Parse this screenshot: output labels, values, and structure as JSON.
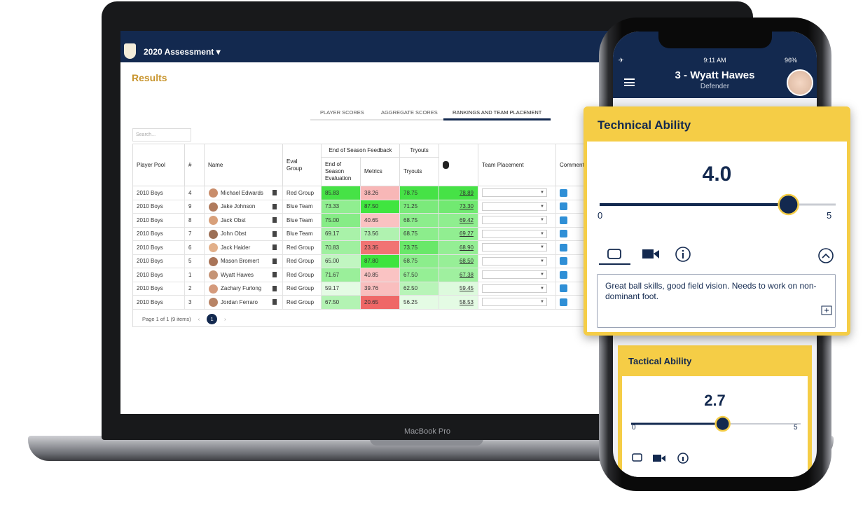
{
  "laptop": {
    "header_title": "2020 Assessment",
    "page_title": "Results",
    "tabs": [
      "PLAYER SCORES",
      "AGGREGATE SCORES",
      "RANKINGS AND TEAM PLACEMENT"
    ],
    "search_placeholder": "Search...",
    "group_headers": [
      "End of Season Feedback",
      "Tryouts"
    ],
    "columns": [
      "Player Pool",
      "#",
      "Name",
      "Eval Group",
      "End of Season Evaluation",
      "Metrics",
      "Tryouts",
      "Team Placement",
      "Comment"
    ],
    "rows": [
      [
        "2010 Boys",
        "4",
        "Michael Edwards",
        "Red Group",
        "85.83",
        "38.26",
        "78.75",
        "78.89"
      ],
      [
        "2010 Boys",
        "9",
        "Jake Johnson",
        "Blue Team",
        "73.33",
        "87.50",
        "71.25",
        "73.30"
      ],
      [
        "2010 Boys",
        "8",
        "Jack Obst",
        "Blue Team",
        "75.00",
        "40.65",
        "68.75",
        "69.42"
      ],
      [
        "2010 Boys",
        "7",
        "John Obst",
        "Blue Team",
        "69.17",
        "73.56",
        "68.75",
        "69.27"
      ],
      [
        "2010 Boys",
        "6",
        "Jack Haider",
        "Red Group",
        "70.83",
        "23.35",
        "73.75",
        "68.90"
      ],
      [
        "2010 Boys",
        "5",
        "Mason Bromert",
        "Red Group",
        "65.00",
        "87.80",
        "68.75",
        "68.50"
      ],
      [
        "2010 Boys",
        "1",
        "Wyatt Hawes",
        "Red Group",
        "71.67",
        "40.85",
        "67.50",
        "67.38"
      ],
      [
        "2010 Boys",
        "2",
        "Zachary Furlong",
        "Red Group",
        "59.17",
        "39.76",
        "62.50",
        "59.45"
      ],
      [
        "2010 Boys",
        "3",
        "Jordan Ferraro",
        "Red Group",
        "67.50",
        "20.65",
        "56.25",
        "58.53"
      ]
    ],
    "pager": "Page 1 of 1 (9 items)",
    "current_page": "1",
    "device_label": "MacBook Pro"
  },
  "phone": {
    "time": "9:11 AM",
    "battery": "96%",
    "player": "3 - Wyatt Hawes",
    "position": "Defender",
    "cards": [
      {
        "title": "Technical Ability",
        "value": 4,
        "value_label": "4.0",
        "min": 0,
        "max": 5,
        "comment": "Great ball skills, good field vision. Needs to work on non-dominant foot."
      },
      {
        "title": "Tactical Ability",
        "value": 2.7,
        "min": 0,
        "max": 5
      }
    ]
  }
}
